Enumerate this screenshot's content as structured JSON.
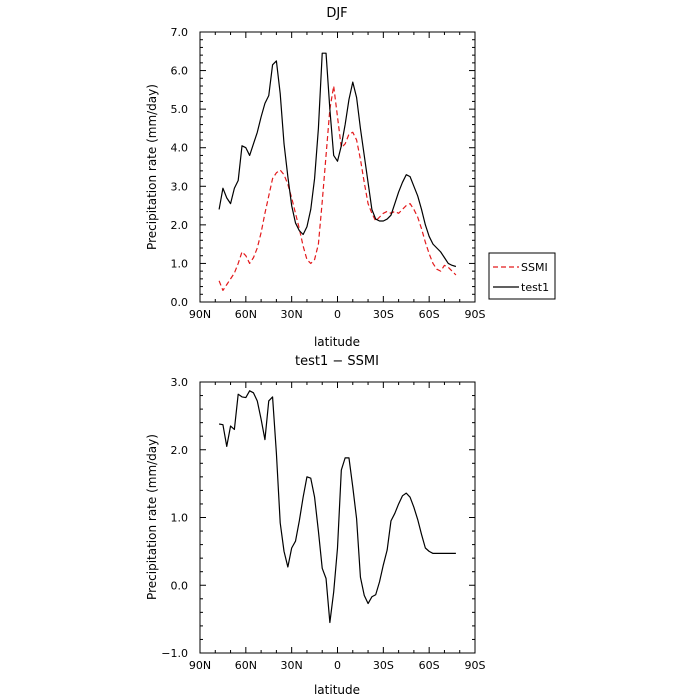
{
  "chart_data": [
    {
      "type": "line",
      "title": "DJF",
      "xlabel": "latitude",
      "ylabel": "Precipitation rate (mm/day)",
      "xlim": [
        90,
        -90
      ],
      "ylim": [
        0,
        7
      ],
      "x_ticks": [
        90,
        60,
        30,
        0,
        -30,
        -60,
        -90
      ],
      "x_tick_labels": [
        "90N",
        "60N",
        "30N",
        "0",
        "30S",
        "60S",
        "90S"
      ],
      "y_ticks": [
        0,
        1,
        2,
        3,
        4,
        5,
        6,
        7
      ],
      "y_tick_labels": [
        "0.0",
        "1.0",
        "2.0",
        "3.0",
        "4.0",
        "5.0",
        "6.0",
        "7.0"
      ],
      "legend": "right",
      "series": [
        {
          "name": "SSMI",
          "color": "#e31a1c",
          "dash": "dashed",
          "x": [
            77.5,
            75,
            72.5,
            70,
            67.5,
            65,
            62.5,
            60,
            57.5,
            55,
            52.5,
            50,
            47.5,
            45,
            42.5,
            40,
            37.5,
            35,
            32.5,
            30,
            27.5,
            25,
            22.5,
            20,
            17.5,
            15,
            12.5,
            10,
            7.5,
            5,
            2.5,
            0,
            -2.5,
            -5,
            -7.5,
            -10,
            -12.5,
            -15,
            -17.5,
            -20,
            -22.5,
            -25,
            -27.5,
            -30,
            -32.5,
            -35,
            -37.5,
            -40,
            -42.5,
            -45,
            -47.5,
            -50,
            -52.5,
            -55,
            -57.5,
            -60,
            -62.5,
            -65,
            -67.5,
            -70,
            -72.5,
            -75,
            -77.5
          ],
          "y": [
            0.55,
            0.3,
            0.45,
            0.6,
            0.75,
            1.0,
            1.3,
            1.2,
            1.0,
            1.15,
            1.4,
            1.8,
            2.3,
            2.75,
            3.2,
            3.35,
            3.42,
            3.3,
            3.05,
            2.7,
            2.3,
            1.9,
            1.45,
            1.1,
            1.0,
            1.1,
            1.5,
            2.6,
            3.8,
            5.0,
            5.6,
            4.8,
            4.0,
            4.1,
            4.35,
            4.4,
            4.2,
            3.7,
            3.1,
            2.55,
            2.3,
            2.1,
            2.2,
            2.3,
            2.35,
            2.3,
            2.35,
            2.3,
            2.4,
            2.5,
            2.55,
            2.4,
            2.2,
            1.9,
            1.55,
            1.25,
            1.0,
            0.85,
            0.8,
            0.95,
            0.9,
            0.8,
            0.7
          ]
        },
        {
          "name": "test1",
          "color": "#000000",
          "dash": "solid",
          "x": [
            77.5,
            75,
            72.5,
            70,
            67.5,
            65,
            62.5,
            60,
            57.5,
            55,
            52.5,
            50,
            47.5,
            45,
            42.5,
            40,
            37.5,
            35,
            32.5,
            30,
            27.5,
            25,
            22.5,
            20,
            17.5,
            15,
            12.5,
            10,
            7.5,
            5,
            2.5,
            0,
            -2.5,
            -5,
            -7.5,
            -10,
            -12.5,
            -15,
            -17.5,
            -20,
            -22.5,
            -25,
            -27.5,
            -30,
            -32.5,
            -35,
            -37.5,
            -40,
            -42.5,
            -45,
            -47.5,
            -50,
            -52.5,
            -55,
            -57.5,
            -60,
            -62.5,
            -65,
            -67.5,
            -70,
            -72.5,
            -75,
            -77.5
          ],
          "y": [
            2.4,
            2.95,
            2.7,
            2.55,
            2.95,
            3.15,
            4.05,
            4.0,
            3.8,
            4.1,
            4.4,
            4.8,
            5.15,
            5.35,
            6.15,
            6.25,
            5.4,
            4.1,
            3.25,
            2.5,
            2.05,
            1.85,
            1.75,
            1.95,
            2.4,
            3.2,
            4.5,
            6.45,
            6.45,
            5.0,
            3.8,
            3.65,
            4.05,
            4.6,
            5.25,
            5.7,
            5.3,
            4.5,
            3.8,
            3.1,
            2.4,
            2.15,
            2.1,
            2.1,
            2.15,
            2.25,
            2.55,
            2.85,
            3.1,
            3.3,
            3.25,
            3.0,
            2.75,
            2.4,
            2.0,
            1.7,
            1.5,
            1.4,
            1.3,
            1.15,
            1.0,
            0.95,
            0.92
          ]
        }
      ]
    },
    {
      "type": "line",
      "title": "test1 − SSMI",
      "xlabel": "latitude",
      "ylabel": "Precipitation rate (mm/day)",
      "xlim": [
        90,
        -90
      ],
      "ylim": [
        -1,
        3
      ],
      "x_ticks": [
        90,
        60,
        30,
        0,
        -30,
        -60,
        -90
      ],
      "x_tick_labels": [
        "90N",
        "60N",
        "30N",
        "0",
        "30S",
        "60S",
        "90S"
      ],
      "y_ticks": [
        -1,
        0,
        1,
        2,
        3
      ],
      "y_tick_labels": [
        "−1.0",
        "0.0",
        "1.0",
        "2.0",
        "3.0"
      ],
      "series": [
        {
          "color": "#000000",
          "dash": "solid",
          "x": [
            77.5,
            75,
            72.5,
            70,
            67.5,
            65,
            62.5,
            60,
            57.5,
            55,
            52.5,
            50,
            47.5,
            45,
            42.5,
            40,
            37.5,
            35,
            32.5,
            30,
            27.5,
            25,
            22.5,
            20,
            17.5,
            15,
            12.5,
            10,
            7.5,
            5,
            2.5,
            0,
            -2.5,
            -5,
            -7.5,
            -10,
            -12.5,
            -15,
            -17.5,
            -20,
            -22.5,
            -25,
            -27.5,
            -30,
            -32.5,
            -35,
            -37.5,
            -40,
            -42.5,
            -45,
            -47.5,
            -50,
            -52.5,
            -55,
            -57.5,
            -60,
            -62.5,
            -65,
            -67.5,
            -70,
            -72.5,
            -75,
            -77.5
          ],
          "y": [
            2.38,
            2.37,
            2.05,
            2.35,
            2.3,
            2.82,
            2.78,
            2.77,
            2.87,
            2.84,
            2.72,
            2.45,
            2.15,
            2.72,
            2.78,
            1.95,
            0.92,
            0.5,
            0.27,
            0.55,
            0.65,
            0.95,
            1.3,
            1.6,
            1.58,
            1.3,
            0.8,
            0.25,
            0.1,
            -0.55,
            -0.1,
            0.55,
            1.7,
            1.88,
            1.88,
            1.45,
            0.98,
            0.12,
            -0.15,
            -0.27,
            -0.17,
            -0.14,
            0.05,
            0.3,
            0.52,
            0.95,
            1.06,
            1.2,
            1.32,
            1.36,
            1.3,
            1.15,
            0.97,
            0.75,
            0.55,
            0.5,
            0.47,
            0.47,
            0.47,
            0.47,
            0.47,
            0.47,
            0.47
          ]
        }
      ]
    }
  ]
}
